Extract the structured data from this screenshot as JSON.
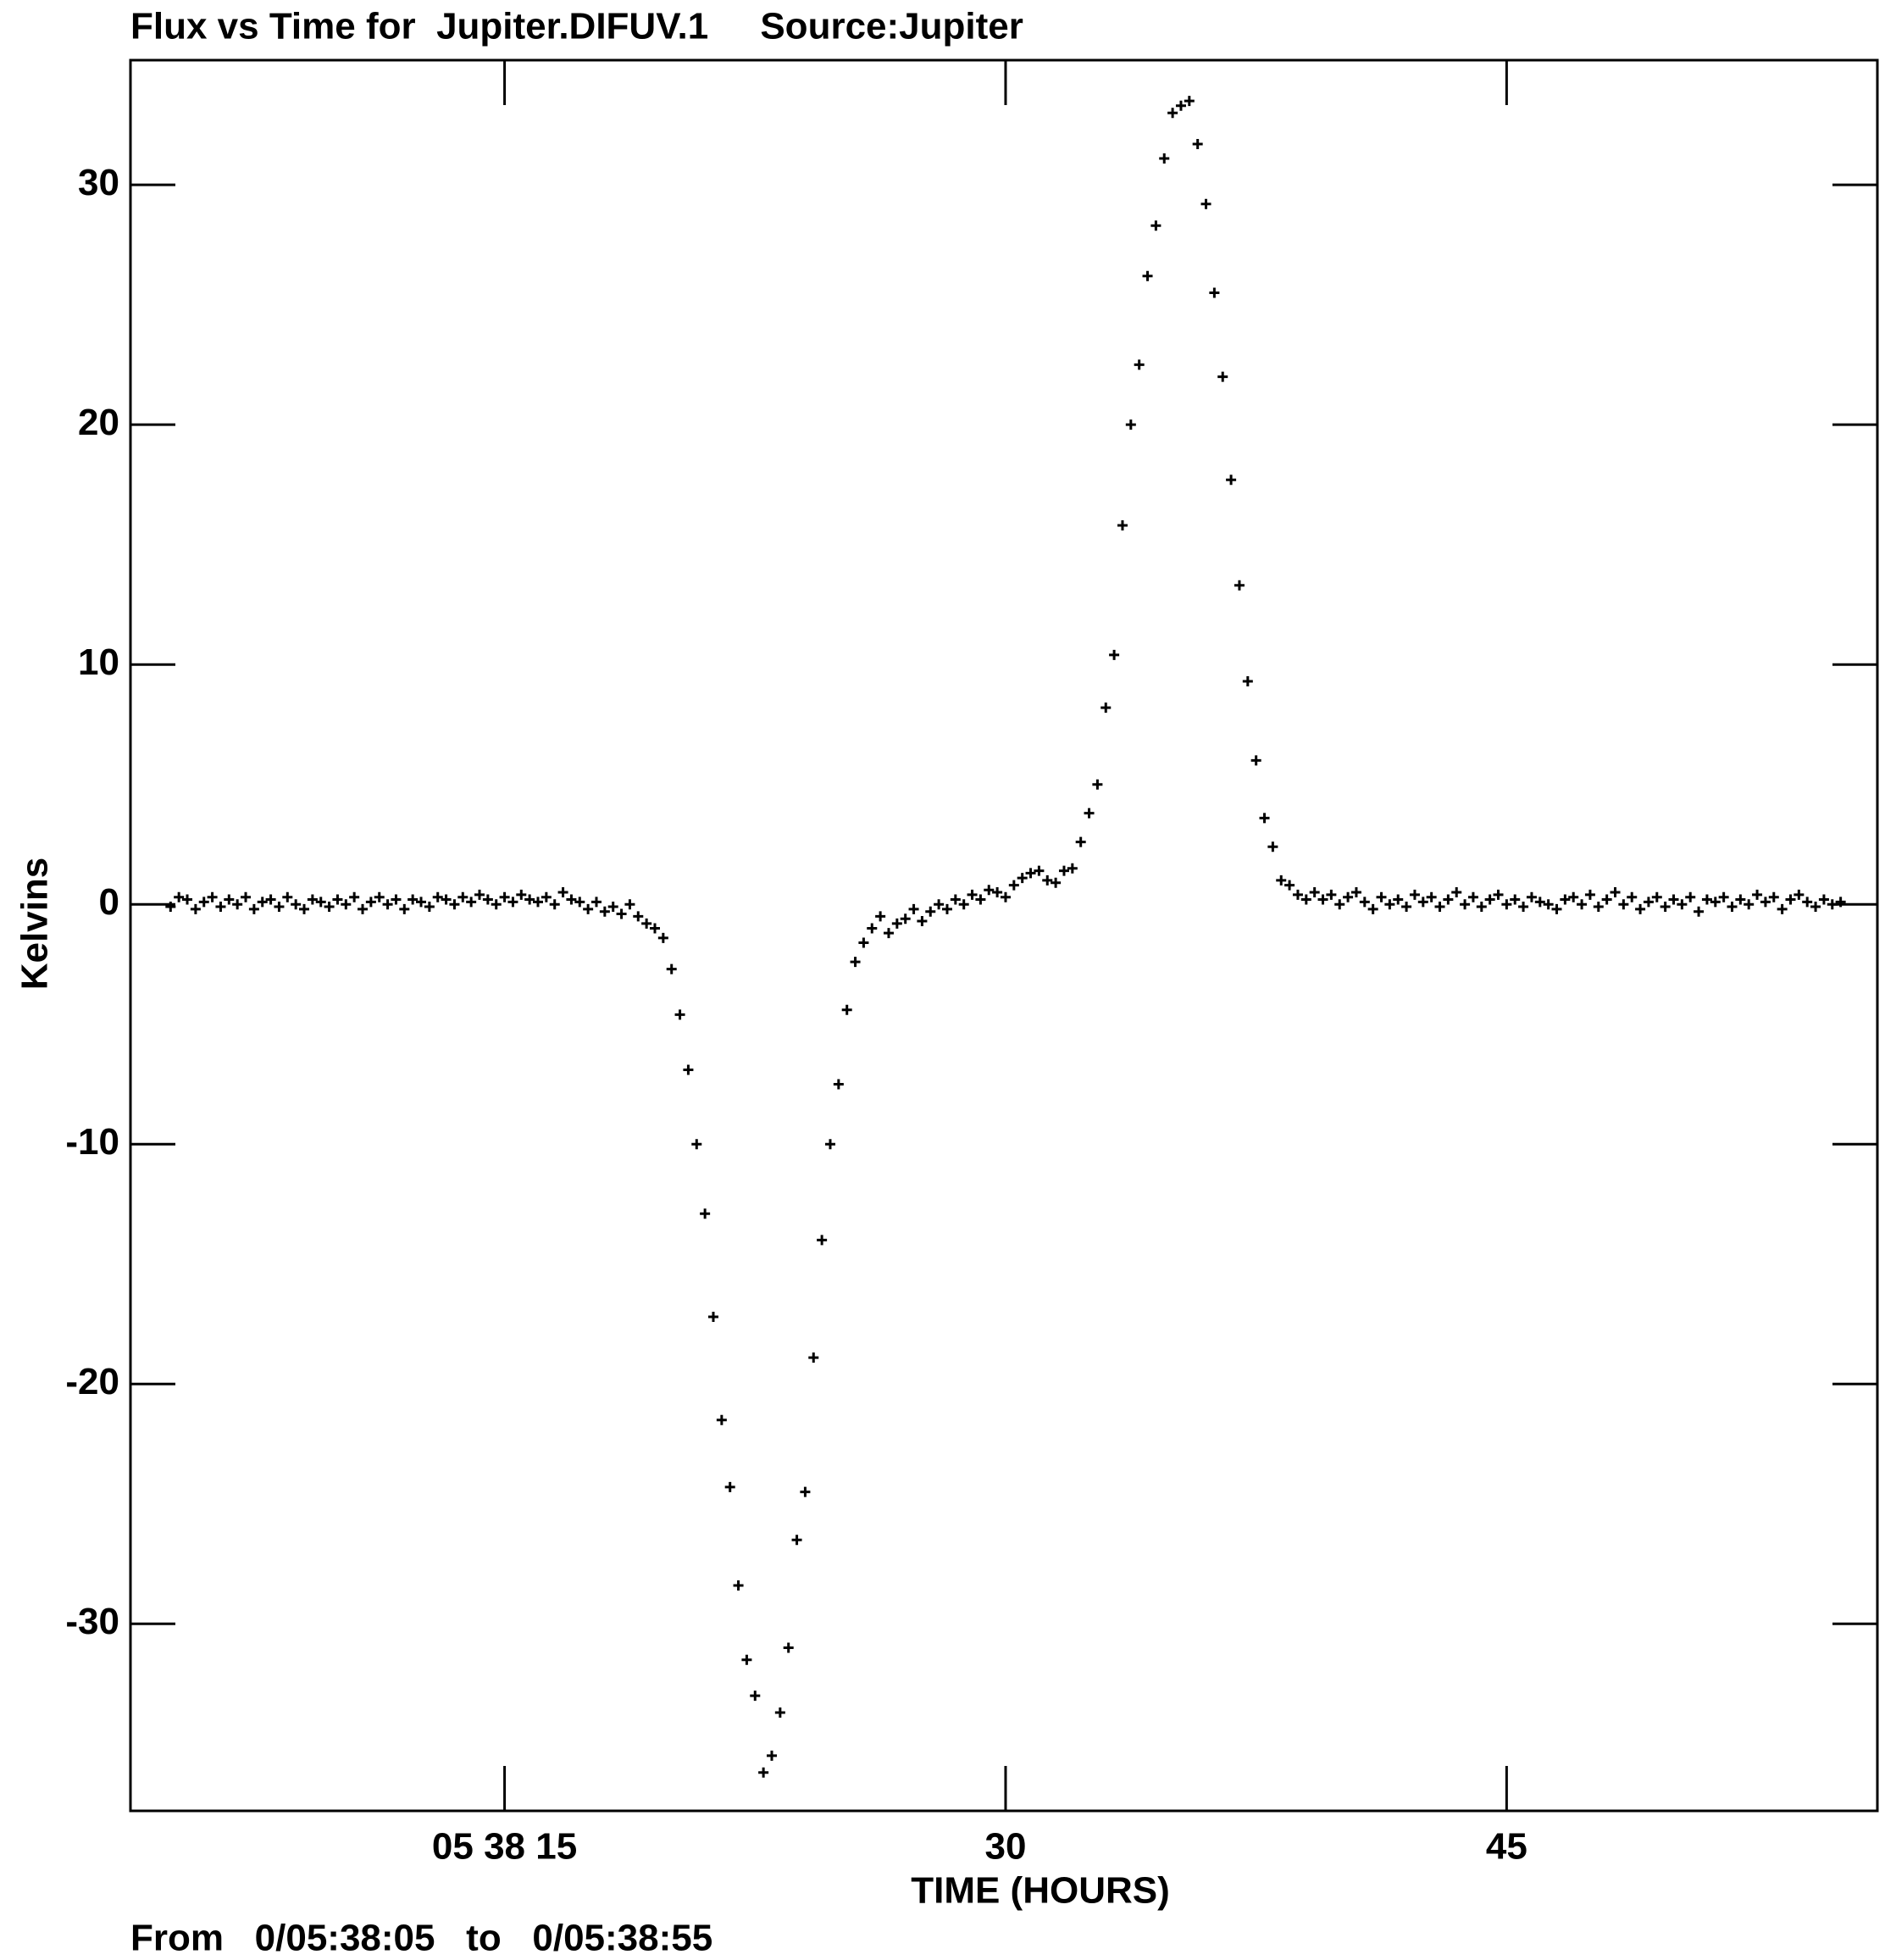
{
  "chart_data": {
    "type": "scatter",
    "title": "Flux vs Time for  Jupiter.DIFUV.1     Source:Jupiter",
    "x_label": "TIME (HOURS)",
    "y_label": "Kelvins",
    "footer": "From   0/05:38:05   to   0/05:38:55",
    "xlim": [
      3.8,
      56.1
    ],
    "ylim": [
      -37.8,
      35.2
    ],
    "xticks": [
      {
        "value": 15,
        "label": "05 38 15"
      },
      30,
      45
    ],
    "yticks": [
      -30,
      -20,
      -10,
      0,
      10,
      20,
      30
    ],
    "color": "#000000",
    "marker": "plus",
    "x": [
      5,
      5.25,
      5.5,
      5.75,
      6,
      6.25,
      6.5,
      6.75,
      7,
      7.25,
      7.5,
      7.75,
      8,
      8.25,
      8.5,
      8.75,
      9,
      9.25,
      9.5,
      9.75,
      10,
      10.25,
      10.5,
      10.75,
      11,
      11.25,
      11.5,
      11.75,
      12,
      12.25,
      12.5,
      12.75,
      13,
      13.25,
      13.5,
      13.75,
      14,
      14.25,
      14.5,
      14.75,
      15,
      15.25,
      15.5,
      15.75,
      16,
      16.25,
      16.5,
      16.75,
      17,
      17.25,
      17.5,
      17.75,
      18,
      18.25,
      18.5,
      18.75,
      19,
      19.25,
      19.5,
      19.75,
      20,
      20.25,
      20.5,
      20.75,
      21,
      21.25,
      21.5,
      21.75,
      22,
      22.25,
      22.5,
      22.75,
      23,
      23.25,
      23.5,
      23.75,
      24,
      24.25,
      24.5,
      24.75,
      25,
      25.25,
      25.5,
      25.75,
      26,
      26.25,
      26.5,
      26.75,
      27,
      27.25,
      27.5,
      27.75,
      28,
      28.25,
      28.5,
      28.75,
      29,
      29.25,
      29.5,
      29.75,
      30,
      30.25,
      30.5,
      30.75,
      31,
      31.25,
      31.5,
      31.75,
      32,
      32.25,
      32.5,
      32.75,
      33,
      33.25,
      33.5,
      33.75,
      34,
      34.25,
      34.5,
      34.75,
      35,
      35.25,
      35.5,
      35.75,
      36,
      36.25,
      36.5,
      36.75,
      37,
      37.25,
      37.5,
      37.75,
      38,
      38.25,
      38.5,
      38.75,
      39,
      39.25,
      39.5,
      39.75,
      40,
      40.25,
      40.5,
      40.75,
      41,
      41.25,
      41.5,
      41.75,
      42,
      42.25,
      42.5,
      42.75,
      43,
      43.25,
      43.5,
      43.75,
      44,
      44.25,
      44.5,
      44.75,
      45,
      45.25,
      45.5,
      45.75,
      46,
      46.25,
      46.5,
      46.75,
      47,
      47.25,
      47.5,
      47.75,
      48,
      48.25,
      48.5,
      48.75,
      49,
      49.25,
      49.5,
      49.75,
      50,
      50.25,
      50.5,
      50.75,
      51,
      51.25,
      51.5,
      51.75,
      52,
      52.25,
      52.5,
      52.75,
      53,
      53.25,
      53.5,
      53.75,
      54,
      54.25,
      54.5,
      54.75,
      55
    ],
    "values": [
      -0.1,
      0.3,
      0.2,
      -0.2,
      0.1,
      0.3,
      -0.1,
      0.2,
      0.0,
      0.3,
      -0.2,
      0.1,
      0.2,
      -0.1,
      0.3,
      0.0,
      -0.2,
      0.2,
      0.1,
      -0.1,
      0.2,
      0.0,
      0.3,
      -0.2,
      0.1,
      0.3,
      0.0,
      0.2,
      -0.2,
      0.2,
      0.1,
      -0.1,
      0.3,
      0.2,
      0.0,
      0.3,
      0.1,
      0.4,
      0.2,
      0.0,
      0.3,
      0.1,
      0.4,
      0.2,
      0.1,
      0.3,
      0.0,
      0.5,
      0.2,
      0.1,
      -0.2,
      0.1,
      -0.3,
      -0.1,
      -0.4,
      0.0,
      -0.5,
      -0.8,
      -1.0,
      -1.4,
      -2.7,
      -4.6,
      -6.9,
      -10.0,
      -12.9,
      -17.2,
      -21.5,
      -24.3,
      -28.4,
      -31.5,
      -33.0,
      -36.2,
      -35.5,
      -33.7,
      -31.0,
      -26.5,
      -24.5,
      -18.9,
      -14.0,
      -10.0,
      -7.5,
      -4.4,
      -2.4,
      -1.6,
      -1.0,
      -0.5,
      -1.2,
      -0.8,
      -0.6,
      -0.2,
      -0.7,
      -0.3,
      0.0,
      -0.2,
      0.2,
      0.0,
      0.4,
      0.2,
      0.6,
      0.5,
      0.3,
      0.8,
      1.1,
      1.3,
      1.4,
      1.0,
      0.9,
      1.4,
      1.5,
      2.6,
      3.8,
      5.0,
      8.2,
      10.4,
      15.8,
      20.0,
      22.5,
      26.2,
      28.3,
      31.1,
      33.0,
      33.3,
      33.5,
      31.7,
      29.2,
      25.5,
      22.0,
      17.7,
      13.3,
      9.3,
      6.0,
      3.6,
      2.4,
      1.0,
      0.8,
      0.4,
      0.2,
      0.5,
      0.2,
      0.4,
      0.0,
      0.3,
      0.5,
      0.1,
      -0.2,
      0.3,
      0.0,
      0.2,
      -0.1,
      0.4,
      0.1,
      0.3,
      -0.1,
      0.2,
      0.5,
      0.0,
      0.3,
      -0.1,
      0.2,
      0.4,
      0.0,
      0.2,
      -0.1,
      0.3,
      0.1,
      0.0,
      -0.2,
      0.2,
      0.3,
      0.0,
      0.4,
      -0.1,
      0.2,
      0.5,
      0.0,
      0.3,
      -0.2,
      0.1,
      0.3,
      -0.1,
      0.2,
      0.0,
      0.3,
      -0.3,
      0.2,
      0.1,
      0.3,
      -0.1,
      0.2,
      0.0,
      0.4,
      0.1,
      0.3,
      -0.2,
      0.2,
      0.4,
      0.1,
      -0.1,
      0.2,
      0.0,
      0.1
    ]
  }
}
